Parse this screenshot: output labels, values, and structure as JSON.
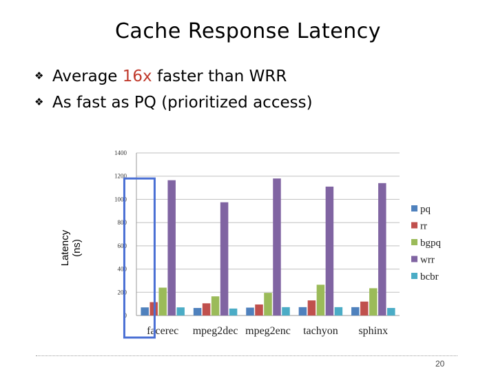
{
  "slide": {
    "title": "Cache Response Latency",
    "bullets": [
      {
        "pre": "Average ",
        "highlight": "16x",
        "post": " faster than WRR"
      },
      {
        "pre": "As fast as PQ (prioritized access)",
        "highlight": "",
        "post": ""
      }
    ],
    "bullet_symbol": "❖",
    "page_number": "20",
    "highlight_color": "#c0392b",
    "box_color": "#4a6fd4"
  },
  "chart_data": {
    "type": "bar",
    "categories": [
      "facerec",
      "mpeg2dec",
      "mpeg2enc",
      "tachyon",
      "sphinx"
    ],
    "series": [
      {
        "name": "pq",
        "color": "#4f81bd",
        "values": [
          70,
          65,
          68,
          72,
          72
        ]
      },
      {
        "name": "rr",
        "color": "#c0504d",
        "values": [
          115,
          105,
          95,
          130,
          120
        ]
      },
      {
        "name": "bgpq",
        "color": "#9bbb59",
        "values": [
          240,
          165,
          195,
          265,
          235
        ]
      },
      {
        "name": "wrr",
        "color": "#8064a2",
        "values": [
          1165,
          975,
          1180,
          1110,
          1140
        ]
      },
      {
        "name": "bcbr",
        "color": "#4bacc6",
        "values": [
          70,
          60,
          72,
          72,
          65
        ]
      }
    ],
    "ylabel": "Latency (ns)",
    "ylim": [
      0,
      1400
    ],
    "yticks": [
      "0",
      "200",
      "400",
      "600",
      "800",
      "1000",
      "1200",
      "1400"
    ],
    "grid": true,
    "legend": "right",
    "highlighted_category": "facerec"
  }
}
